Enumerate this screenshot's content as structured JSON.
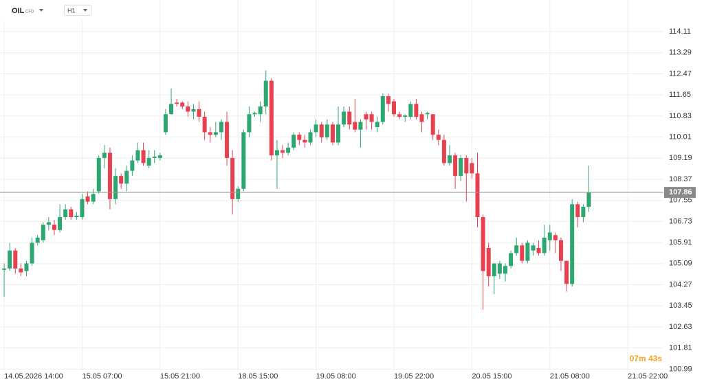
{
  "toolbar": {
    "symbol": "OIL",
    "instrument": "CFD",
    "timeframe": "H1",
    "countdown": "07m 43s"
  },
  "chart_data": {
    "type": "candlestick",
    "xticks": [
      {
        "value": 0,
        "label": "14.05.2026 14:00"
      },
      {
        "value": 14,
        "label": "15.05 07:00"
      },
      {
        "value": 28,
        "label": "15.05 21:00"
      },
      {
        "value": 42,
        "label": "18.05 15:00"
      },
      {
        "value": 56,
        "label": "19.05 08:00"
      },
      {
        "value": 70,
        "label": "19.05 22:00"
      },
      {
        "value": 84,
        "label": "20.05 15:00"
      },
      {
        "value": 98,
        "label": "21.05 08:00"
      },
      {
        "value": 112,
        "label": "21.05 22:00"
      }
    ],
    "xlim": [
      -0.75,
      118.4
    ],
    "ylim": [
      100.92,
      115.34
    ],
    "yticks": [
      114.11,
      113.29,
      112.47,
      111.65,
      110.83,
      110.01,
      109.19,
      108.37,
      107.55,
      106.73,
      105.91,
      105.09,
      104.27,
      103.45,
      102.63,
      101.81,
      100.99
    ],
    "grid": true,
    "up_color": "#2ea66f",
    "down_color": "#e8404f",
    "last_price": 107.86,
    "open": [
      104.85,
      104.9,
      105.6,
      104.9,
      104.8,
      105.1,
      105.9,
      106.0,
      106.6,
      106.6,
      106.4,
      106.9,
      107.2,
      106.9,
      106.9,
      107.7,
      107.5,
      107.9,
      109.2,
      109.4,
      107.6,
      108.5,
      108.2,
      108.7,
      109.1,
      109.5,
      108.9,
      109.2,
      109.2,
      110.2,
      110.9,
      111.35,
      111.35,
      111.2,
      111.0,
      111.1,
      110.8,
      110.2,
      110.1,
      110.2,
      110.6,
      109.2,
      107.6,
      108.0,
      110.2,
      110.9,
      110.9,
      111.2,
      112.2,
      109.3,
      109.5,
      109.4,
      109.6,
      110.1,
      109.9,
      109.8,
      110.2,
      110.5,
      110.0,
      110.5,
      109.8,
      110.5,
      111.0,
      110.6,
      110.3,
      110.9,
      110.9,
      110.4,
      110.6,
      111.6,
      111.4,
      110.9,
      110.8,
      110.8,
      111.3,
      110.9,
      110.9,
      110.9,
      110.1,
      109.9,
      109.0,
      109.3,
      108.5,
      109.2,
      109.0,
      108.6,
      106.9,
      105.7,
      104.6,
      104.7,
      104.7,
      105.0,
      105.5,
      105.8,
      105.2,
      105.6,
      105.7,
      105.5,
      106.0,
      106.2,
      106.0,
      105.2,
      104.3,
      107.4,
      106.9,
      107.3
    ],
    "high": [
      105.1,
      105.9,
      105.7,
      105.1,
      105.2,
      106.1,
      106.2,
      106.7,
      106.9,
      106.8,
      107.4,
      107.4,
      107.3,
      107.1,
      107.8,
      107.9,
      108.0,
      109.3,
      109.7,
      109.6,
      108.8,
      108.6,
      108.9,
      109.3,
      109.8,
      109.8,
      109.5,
      109.5,
      109.4,
      111.1,
      111.9,
      111.5,
      111.4,
      111.4,
      111.3,
      111.4,
      111.0,
      110.4,
      110.6,
      110.7,
      111.0,
      109.5,
      108.1,
      110.3,
      111.2,
      111.0,
      111.4,
      112.6,
      112.3,
      109.9,
      109.7,
      109.8,
      110.2,
      110.2,
      110.1,
      110.3,
      110.7,
      110.6,
      110.7,
      110.6,
      111.2,
      111.2,
      111.2,
      111.5,
      110.7,
      111.0,
      111.0,
      110.8,
      111.7,
      111.7,
      111.5,
      111.0,
      110.9,
      111.4,
      111.5,
      111.0,
      111.0,
      110.9,
      110.3,
      110.1,
      109.7,
      109.4,
      109.3,
      109.3,
      109.2,
      109.4,
      107.0,
      105.9,
      105.1,
      105.2,
      105.1,
      105.6,
      106.1,
      105.9,
      106.0,
      105.9,
      106.0,
      106.6,
      106.6,
      106.3,
      106.1,
      105.2,
      107.6,
      107.5,
      107.4,
      108.9
    ],
    "low": [
      103.8,
      104.8,
      104.7,
      104.6,
      104.6,
      105.0,
      105.8,
      105.9,
      106.4,
      106.2,
      106.3,
      106.8,
      106.8,
      106.8,
      106.8,
      107.4,
      107.4,
      107.8,
      108.8,
      107.2,
      107.4,
      108.0,
      107.9,
      108.5,
      109.0,
      108.9,
      108.8,
      109.0,
      109.1,
      110.1,
      110.9,
      111.2,
      111.1,
      110.8,
      110.7,
      110.6,
      109.9,
      109.8,
      110.0,
      109.9,
      108.9,
      107.0,
      107.5,
      107.9,
      110.0,
      110.8,
      110.6,
      110.9,
      109.1,
      108.0,
      109.2,
      109.3,
      109.5,
      109.7,
      109.6,
      109.7,
      110.0,
      109.8,
      109.9,
      109.7,
      109.7,
      110.4,
      110.3,
      110.2,
      109.6,
      110.3,
      110.3,
      110.2,
      110.5,
      111.0,
      110.8,
      110.7,
      110.6,
      110.7,
      110.7,
      110.2,
      110.7,
      109.9,
      109.7,
      108.9,
      108.9,
      108.0,
      108.3,
      107.5,
      108.4,
      106.5,
      103.3,
      104.2,
      103.9,
      104.5,
      104.4,
      104.9,
      105.4,
      105.1,
      105.1,
      105.4,
      105.4,
      105.4,
      105.6,
      105.5,
      104.8,
      104.0,
      104.2,
      106.5,
      106.7,
      107.1
    ],
    "close": [
      104.9,
      105.6,
      104.9,
      104.75,
      105.1,
      105.9,
      106.1,
      106.6,
      106.7,
      106.4,
      106.9,
      107.2,
      106.9,
      106.95,
      107.6,
      107.5,
      107.8,
      109.2,
      109.4,
      107.6,
      108.5,
      108.2,
      108.7,
      109.1,
      109.5,
      109.0,
      109.2,
      109.25,
      109.3,
      110.9,
      111.3,
      111.3,
      111.2,
      111.0,
      111.1,
      110.8,
      110.2,
      110.1,
      110.2,
      110.6,
      109.2,
      107.6,
      108.0,
      110.2,
      110.9,
      110.95,
      111.2,
      112.2,
      109.3,
      109.5,
      109.4,
      109.6,
      110.1,
      109.9,
      109.8,
      110.2,
      110.5,
      110.0,
      110.5,
      109.8,
      110.5,
      111.0,
      110.5,
      110.3,
      110.6,
      110.7,
      110.6,
      110.6,
      111.6,
      111.3,
      110.9,
      110.8,
      110.85,
      111.3,
      110.8,
      110.6,
      110.95,
      110.1,
      109.9,
      109.0,
      109.3,
      108.5,
      109.2,
      108.6,
      108.6,
      106.9,
      104.8,
      104.6,
      105.1,
      105.1,
      105.0,
      105.5,
      105.8,
      105.2,
      105.9,
      105.8,
      105.5,
      106.1,
      106.3,
      106.0,
      105.2,
      104.3,
      107.4,
      106.9,
      107.3,
      107.86
    ]
  }
}
